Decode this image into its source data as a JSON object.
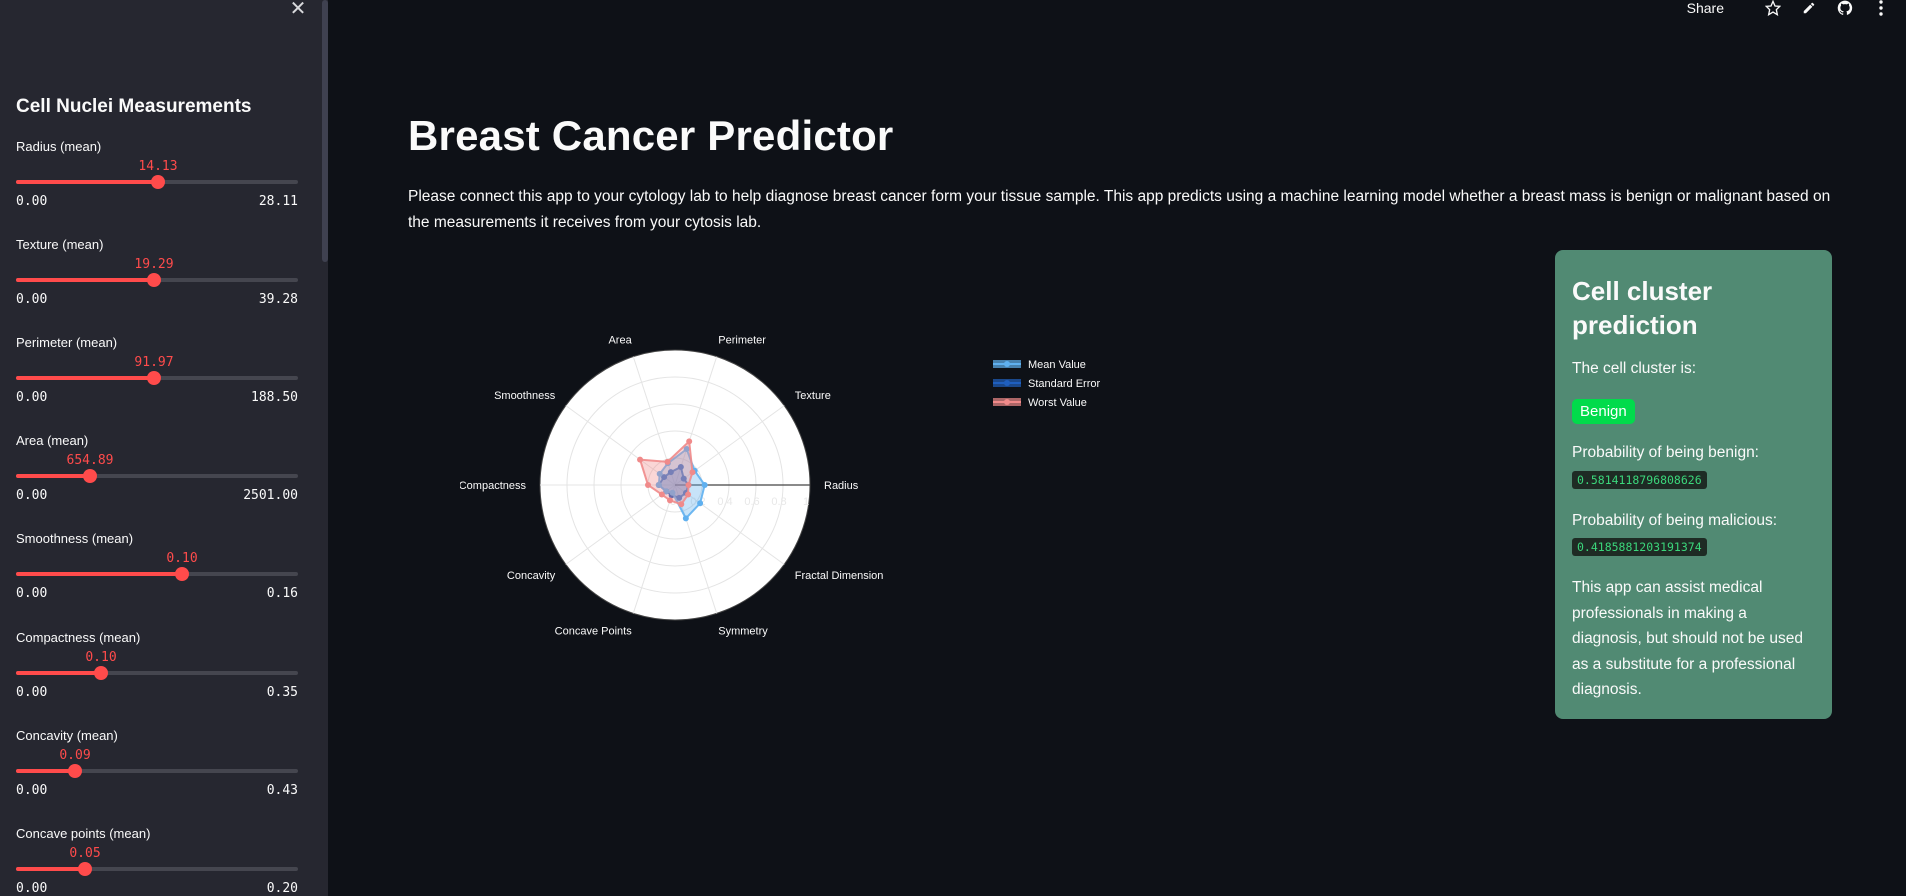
{
  "toolbar": {
    "share_label": "Share",
    "icons": [
      "star-icon",
      "pencil-icon",
      "github-icon",
      "more-vertical-icon"
    ]
  },
  "sidebar": {
    "title": "Cell Nuclei Measurements",
    "sliders": [
      {
        "label": "Radius (mean)",
        "value": "14.13",
        "min": "0.00",
        "max": "28.11",
        "fraction": 0.503
      },
      {
        "label": "Texture (mean)",
        "value": "19.29",
        "min": "0.00",
        "max": "39.28",
        "fraction": 0.491
      },
      {
        "label": "Perimeter (mean)",
        "value": "91.97",
        "min": "0.00",
        "max": "188.50",
        "fraction": 0.488
      },
      {
        "label": "Area (mean)",
        "value": "654.89",
        "min": "0.00",
        "max": "2501.00",
        "fraction": 0.262
      },
      {
        "label": "Smoothness (mean)",
        "value": "0.10",
        "min": "0.00",
        "max": "0.16",
        "fraction": 0.59
      },
      {
        "label": "Compactness (mean)",
        "value": "0.10",
        "min": "0.00",
        "max": "0.35",
        "fraction": 0.3
      },
      {
        "label": "Concavity (mean)",
        "value": "0.09",
        "min": "0.00",
        "max": "0.43",
        "fraction": 0.21
      },
      {
        "label": "Concave points (mean)",
        "value": "0.05",
        "min": "0.00",
        "max": "0.20",
        "fraction": 0.245
      }
    ]
  },
  "main": {
    "title": "Breast Cancer Predictor",
    "description": "Please connect this app to your cytology lab to help diagnose breast cancer form your tissue sample. This app predicts using a machine learning model whether a breast mass is benign or malignant based on the measurements it receives from your cytosis lab."
  },
  "prediction": {
    "title": "Cell cluster prediction",
    "cluster_label": "The cell cluster is:",
    "result": "Benign",
    "benign_label": "Probability of being benign:",
    "benign_value": "0.5814118796808626",
    "malicious_label": "Probability of being malicious:",
    "malicious_value": "0.4185881203191374",
    "note": "This app can assist medical professionals in making a diagnosis, but should not be used as a substitute for a professional diagnosis.",
    "badge_color": "#01db4b",
    "card_color": "#518a73"
  },
  "chart_data": {
    "type": "radar",
    "categories": [
      "Radius",
      "Texture",
      "Perimeter",
      "Area",
      "Smoothness",
      "Compactness",
      "Concavity",
      "Concave Points",
      "Symmetry",
      "Fractal Dimension"
    ],
    "radial_ticks": [
      "0",
      "0.2",
      "0.4",
      "0.6",
      "0.8",
      "1"
    ],
    "radial_range": [
      0,
      1
    ],
    "legend_position": "right",
    "series": [
      {
        "name": "Mean Value",
        "color": "#5fb0ef",
        "values": [
          0.22,
          0.18,
          0.28,
          0.17,
          0.14,
          0.12,
          0.08,
          0.06,
          0.26,
          0.23
        ]
      },
      {
        "name": "Standard Error",
        "color": "#1f5fbf",
        "values": [
          0.1,
          0.08,
          0.14,
          0.1,
          0.1,
          0.12,
          0.08,
          0.08,
          0.1,
          0.1
        ]
      },
      {
        "name": "Worst Value",
        "color": "#f08a8a",
        "values": [
          0.1,
          0.16,
          0.34,
          0.18,
          0.32,
          0.2,
          0.12,
          0.12,
          0.15,
          0.12
        ]
      }
    ]
  }
}
